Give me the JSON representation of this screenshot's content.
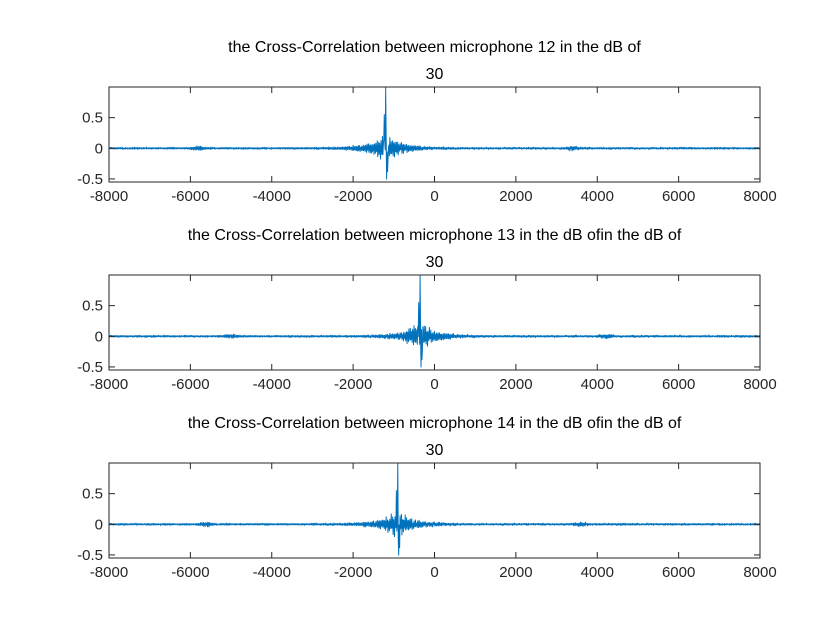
{
  "figure": {
    "background": "#ffffff"
  },
  "chart_data": [
    {
      "type": "line",
      "title_lines": [
        "the Cross-Correlation between microphone 12 in the dB of",
        "30"
      ],
      "xlim": [
        -8000,
        8000
      ],
      "ylim": [
        -0.55,
        1.0
      ],
      "xticks": [
        "-8000",
        "-6000",
        "-4000",
        "-2000",
        "0",
        "2000",
        "4000",
        "6000",
        "8000"
      ],
      "xtick_values": [
        -8000,
        -6000,
        -4000,
        -2000,
        0,
        2000,
        4000,
        6000,
        8000
      ],
      "yticks": [
        "-0.5",
        "0",
        "0.5"
      ],
      "ytick_values": [
        -0.5,
        0,
        0.5
      ],
      "grid": false,
      "series": [
        {
          "color": "#0072BD",
          "peak_lag": -1200,
          "peak_value": 1.0,
          "min_value": -0.5,
          "secondary_bursts": [
            -5800,
            3400
          ]
        }
      ]
    },
    {
      "type": "line",
      "title_lines": [
        "the Cross-Correlation between microphone 13 in the dB ofin the dB of",
        "30"
      ],
      "xlim": [
        -8000,
        8000
      ],
      "ylim": [
        -0.55,
        1.0
      ],
      "xticks": [
        "-8000",
        "-6000",
        "-4000",
        "-2000",
        "0",
        "2000",
        "4000",
        "6000",
        "8000"
      ],
      "xtick_values": [
        -8000,
        -6000,
        -4000,
        -2000,
        0,
        2000,
        4000,
        6000,
        8000
      ],
      "yticks": [
        "-0.5",
        "0",
        "0.5"
      ],
      "ytick_values": [
        -0.5,
        0,
        0.5
      ],
      "grid": false,
      "series": [
        {
          "color": "#0072BD",
          "peak_lag": -350,
          "peak_value": 1.0,
          "min_value": -0.5,
          "secondary_bursts": [
            -5000,
            4200
          ]
        }
      ]
    },
    {
      "type": "line",
      "title_lines": [
        "the Cross-Correlation between microphone 14 in the dB ofin the dB of",
        "30"
      ],
      "xlim": [
        -8000,
        8000
      ],
      "ylim": [
        -0.55,
        1.0
      ],
      "xticks": [
        "-8000",
        "-6000",
        "-4000",
        "-2000",
        "0",
        "2000",
        "4000",
        "6000",
        "8000"
      ],
      "xtick_values": [
        -8000,
        -6000,
        -4000,
        -2000,
        0,
        2000,
        4000,
        6000,
        8000
      ],
      "yticks": [
        "-0.5",
        "0",
        "0.5"
      ],
      "ytick_values": [
        -0.5,
        0,
        0.5
      ],
      "grid": false,
      "series": [
        {
          "color": "#0072BD",
          "peak_lag": -900,
          "peak_value": 1.0,
          "min_value": -0.5,
          "secondary_bursts": [
            -5600,
            3600
          ]
        }
      ]
    }
  ]
}
